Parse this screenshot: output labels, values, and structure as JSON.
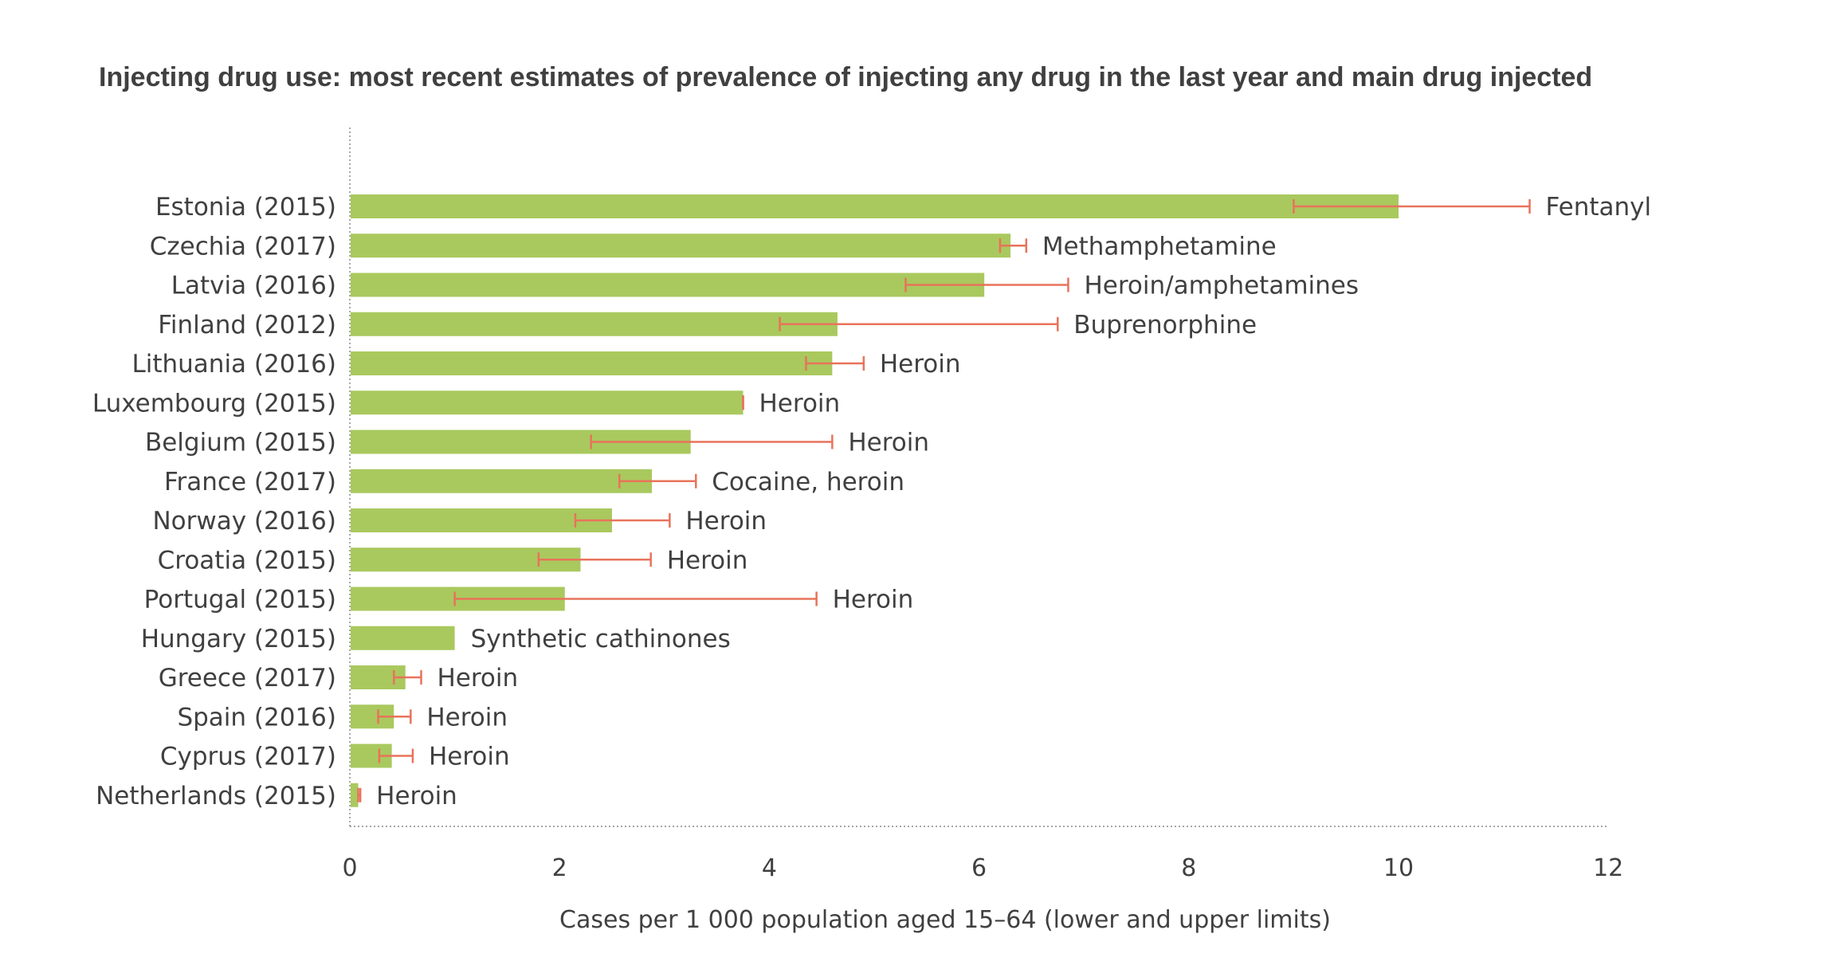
{
  "chart_data": {
    "type": "bar",
    "orientation": "horizontal",
    "title": "Injecting drug use: most recent estimates of prevalence of injecting any drug in the last year and main drug injected",
    "xlabel": "Cases per 1 000 population aged 15–64 (lower and upper limits)",
    "ylabel": "",
    "xlim": [
      0,
      12
    ],
    "xticks": [
      "0",
      "2",
      "4",
      "6",
      "8",
      "10",
      "12"
    ],
    "grid": false,
    "categories": [
      "Estonia (2015)",
      "Czechia (2017)",
      "Latvia (2016)",
      "Finland (2012)",
      "Lithuania (2016)",
      "Luxembourg (2015)",
      "Belgium (2015)",
      "France (2017)",
      "Norway (2016)",
      "Croatia (2015)",
      "Portugal (2015)",
      "Hungary (2015)",
      "Greece (2017)",
      "Spain (2016)",
      "Cyprus (2017)",
      "Netherlands (2015)"
    ],
    "values": [
      10.0,
      6.3,
      6.05,
      4.65,
      4.6,
      3.75,
      3.25,
      2.88,
      2.5,
      2.2,
      2.05,
      1.0,
      0.53,
      0.42,
      0.4,
      0.08
    ],
    "lower": [
      9.0,
      6.2,
      5.3,
      4.1,
      4.35,
      3.75,
      2.3,
      2.57,
      2.15,
      1.8,
      1.0,
      null,
      0.42,
      0.27,
      0.28,
      0.08
    ],
    "upper": [
      11.25,
      6.45,
      6.85,
      6.75,
      4.9,
      3.75,
      4.6,
      3.3,
      3.05,
      2.87,
      4.45,
      null,
      0.68,
      0.58,
      0.6,
      0.1
    ],
    "main_drug": [
      "Fentanyl",
      "Methamphetamine",
      "Heroin/amphetamines",
      "Buprenorphine",
      "Heroin",
      "Heroin",
      "Heroin",
      "Cocaine, heroin",
      "Heroin",
      "Heroin",
      "Heroin",
      "Synthetic cathinones",
      "Heroin",
      "Heroin",
      "Heroin",
      "Heroin"
    ],
    "colors": {
      "bar": "#a9c95e",
      "error": "#e8735a",
      "axis": "#8a8a8a",
      "text": "#404040"
    }
  }
}
